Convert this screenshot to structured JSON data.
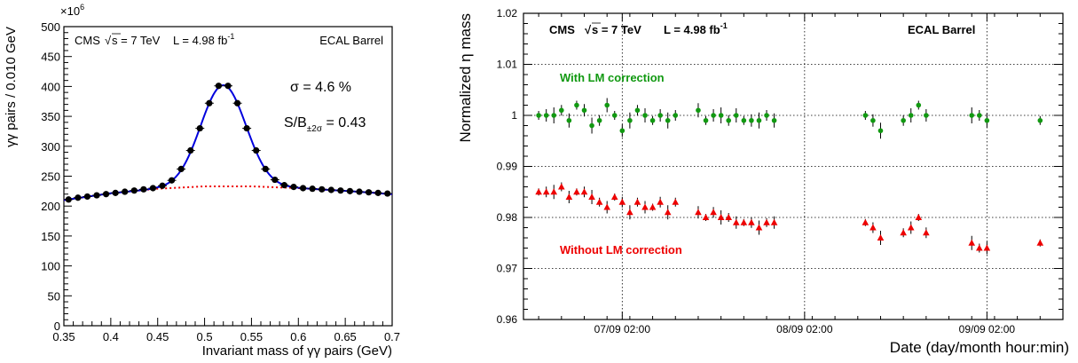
{
  "chart_data": [
    {
      "type": "scatter",
      "x_label": "Invariant mass of γγ pairs (GeV)",
      "y_label": "γγ pairs / 0.010 GeV",
      "y_multiplier": "×10",
      "y_multiplier_exp": "6",
      "xlim": [
        0.35,
        0.7
      ],
      "ylim": [
        0,
        500
      ],
      "x_ticks": [
        "0.35",
        "0.4",
        "0.45",
        "0.5",
        "0.55",
        "0.6",
        "0.65",
        "0.7"
      ],
      "y_ticks": [
        "0",
        "50",
        "100",
        "150",
        "200",
        "250",
        "300",
        "350",
        "400",
        "450",
        "500"
      ],
      "annotations": {
        "cms": "CMS",
        "sqrt_s": "s = 7 TeV",
        "lumi": "L = 4.98 fb",
        "lumi_exp": "-1",
        "region": "ECAL Barrel",
        "sigma": "σ = 4.6 %",
        "sb_prefix": "S/B",
        "sb_sub": "±2σ",
        "sb_value": " = 0.43"
      },
      "colors": {
        "points": "#000000",
        "fit": "#0000dd",
        "background": "#ee0000"
      },
      "series": [
        {
          "kind": "points",
          "x": [
            0.355,
            0.365,
            0.375,
            0.385,
            0.395,
            0.405,
            0.415,
            0.425,
            0.435,
            0.445,
            0.455,
            0.465,
            0.475,
            0.485,
            0.495,
            0.505,
            0.515,
            0.525,
            0.535,
            0.545,
            0.555,
            0.565,
            0.575,
            0.585,
            0.595,
            0.605,
            0.615,
            0.625,
            0.635,
            0.645,
            0.655,
            0.665,
            0.675,
            0.685,
            0.695
          ],
          "y": [
            211,
            214,
            216,
            218,
            220,
            222,
            224,
            226,
            228,
            230,
            234,
            243,
            262,
            293,
            330,
            372,
            401,
            401,
            372,
            330,
            293,
            262,
            244,
            235,
            232,
            230,
            229,
            228,
            227,
            226,
            225,
            224,
            223,
            222,
            221
          ]
        },
        {
          "kind": "fit",
          "signal_mean": 0.52,
          "signal_sigma": 0.024,
          "signal_amplitude": 169,
          "background_x": [
            0.35,
            0.4,
            0.45,
            0.5,
            0.55,
            0.6,
            0.65,
            0.7
          ],
          "background_y": [
            210,
            221.5,
            229,
            233,
            233,
            230,
            225.5,
            220
          ]
        }
      ]
    },
    {
      "type": "scatter",
      "x_label": "Date (day/month hour:min)",
      "y_label_prefix": "Normalized ",
      "y_label_eta": "η",
      "y_label_suffix": "  mass",
      "ylim": [
        0.96,
        1.02
      ],
      "y_ticks": [
        "0.96",
        "0.97",
        "0.98",
        "0.99",
        "1",
        "1.01",
        "1.02"
      ],
      "x_ticks": [
        "07/09 02:00",
        "08/09 02:00",
        "09/09 02:00"
      ],
      "annotations": {
        "cms": "CMS",
        "sqrt_s": "s = 7 TeV",
        "lumi": "L = 4.98 fb",
        "lumi_exp": "-1",
        "region": "ECAL Barrel"
      },
      "series": [
        {
          "name": "With LM correction",
          "color": "#119911",
          "marker": "circle",
          "x": [
            "06/09 15:00",
            "06/09 16:00",
            "06/09 17:00",
            "06/09 18:00",
            "06/09 19:00",
            "06/09 20:00",
            "06/09 21:00",
            "06/09 22:00",
            "06/09 23:00",
            "07/09 00:00",
            "07/09 01:00",
            "07/09 02:00",
            "07/09 03:00",
            "07/09 04:00",
            "07/09 05:00",
            "07/09 06:00",
            "07/09 07:00",
            "07/09 08:00",
            "07/09 09:00",
            "07/09 12:00",
            "07/09 13:00",
            "07/09 14:00",
            "07/09 15:00",
            "07/09 16:00",
            "07/09 17:00",
            "07/09 18:00",
            "07/09 19:00",
            "07/09 20:00",
            "07/09 21:00",
            "07/09 22:00",
            "08/09 10:00",
            "08/09 11:00",
            "08/09 12:00",
            "08/09 15:00",
            "08/09 16:00",
            "08/09 17:00",
            "08/09 18:00",
            "09/09 00:00",
            "09/09 01:00",
            "09/09 02:00",
            "09/09 09:00"
          ],
          "y": [
            1.0,
            1.0,
            1.0,
            1.001,
            0.999,
            1.002,
            1.001,
            0.998,
            0.999,
            1.002,
            1.0,
            0.997,
            0.999,
            1.001,
            1.0,
            0.999,
            1.0,
            0.999,
            1.0,
            1.001,
            0.999,
            1.0,
            1.0,
            0.999,
            1.0,
            0.999,
            0.999,
            0.999,
            1.0,
            0.999,
            1.0,
            0.999,
            0.997,
            0.999,
            1.0,
            1.002,
            1.0,
            1.0,
            1.0,
            0.999,
            0.999
          ]
        },
        {
          "name": "Without LM correction",
          "color": "#ee0000",
          "marker": "triangle",
          "x": [
            "06/09 15:00",
            "06/09 16:00",
            "06/09 17:00",
            "06/09 18:00",
            "06/09 19:00",
            "06/09 20:00",
            "06/09 21:00",
            "06/09 22:00",
            "06/09 23:00",
            "07/09 00:00",
            "07/09 01:00",
            "07/09 02:00",
            "07/09 03:00",
            "07/09 04:00",
            "07/09 05:00",
            "07/09 06:00",
            "07/09 07:00",
            "07/09 08:00",
            "07/09 09:00",
            "07/09 12:00",
            "07/09 13:00",
            "07/09 14:00",
            "07/09 15:00",
            "07/09 16:00",
            "07/09 17:00",
            "07/09 18:00",
            "07/09 19:00",
            "07/09 20:00",
            "07/09 21:00",
            "07/09 22:00",
            "08/09 10:00",
            "08/09 11:00",
            "08/09 12:00",
            "08/09 15:00",
            "08/09 16:00",
            "08/09 17:00",
            "08/09 18:00",
            "09/09 00:00",
            "09/09 01:00",
            "09/09 02:00",
            "09/09 09:00"
          ],
          "y": [
            0.985,
            0.985,
            0.985,
            0.986,
            0.984,
            0.985,
            0.985,
            0.984,
            0.983,
            0.982,
            0.984,
            0.983,
            0.981,
            0.983,
            0.982,
            0.982,
            0.983,
            0.981,
            0.983,
            0.981,
            0.98,
            0.981,
            0.98,
            0.98,
            0.979,
            0.979,
            0.979,
            0.978,
            0.979,
            0.979,
            0.979,
            0.978,
            0.976,
            0.977,
            0.978,
            0.98,
            0.977,
            0.975,
            0.974,
            0.974,
            0.975
          ]
        }
      ],
      "series_labels": [
        "With LM correction",
        "Without LM correction"
      ]
    }
  ]
}
